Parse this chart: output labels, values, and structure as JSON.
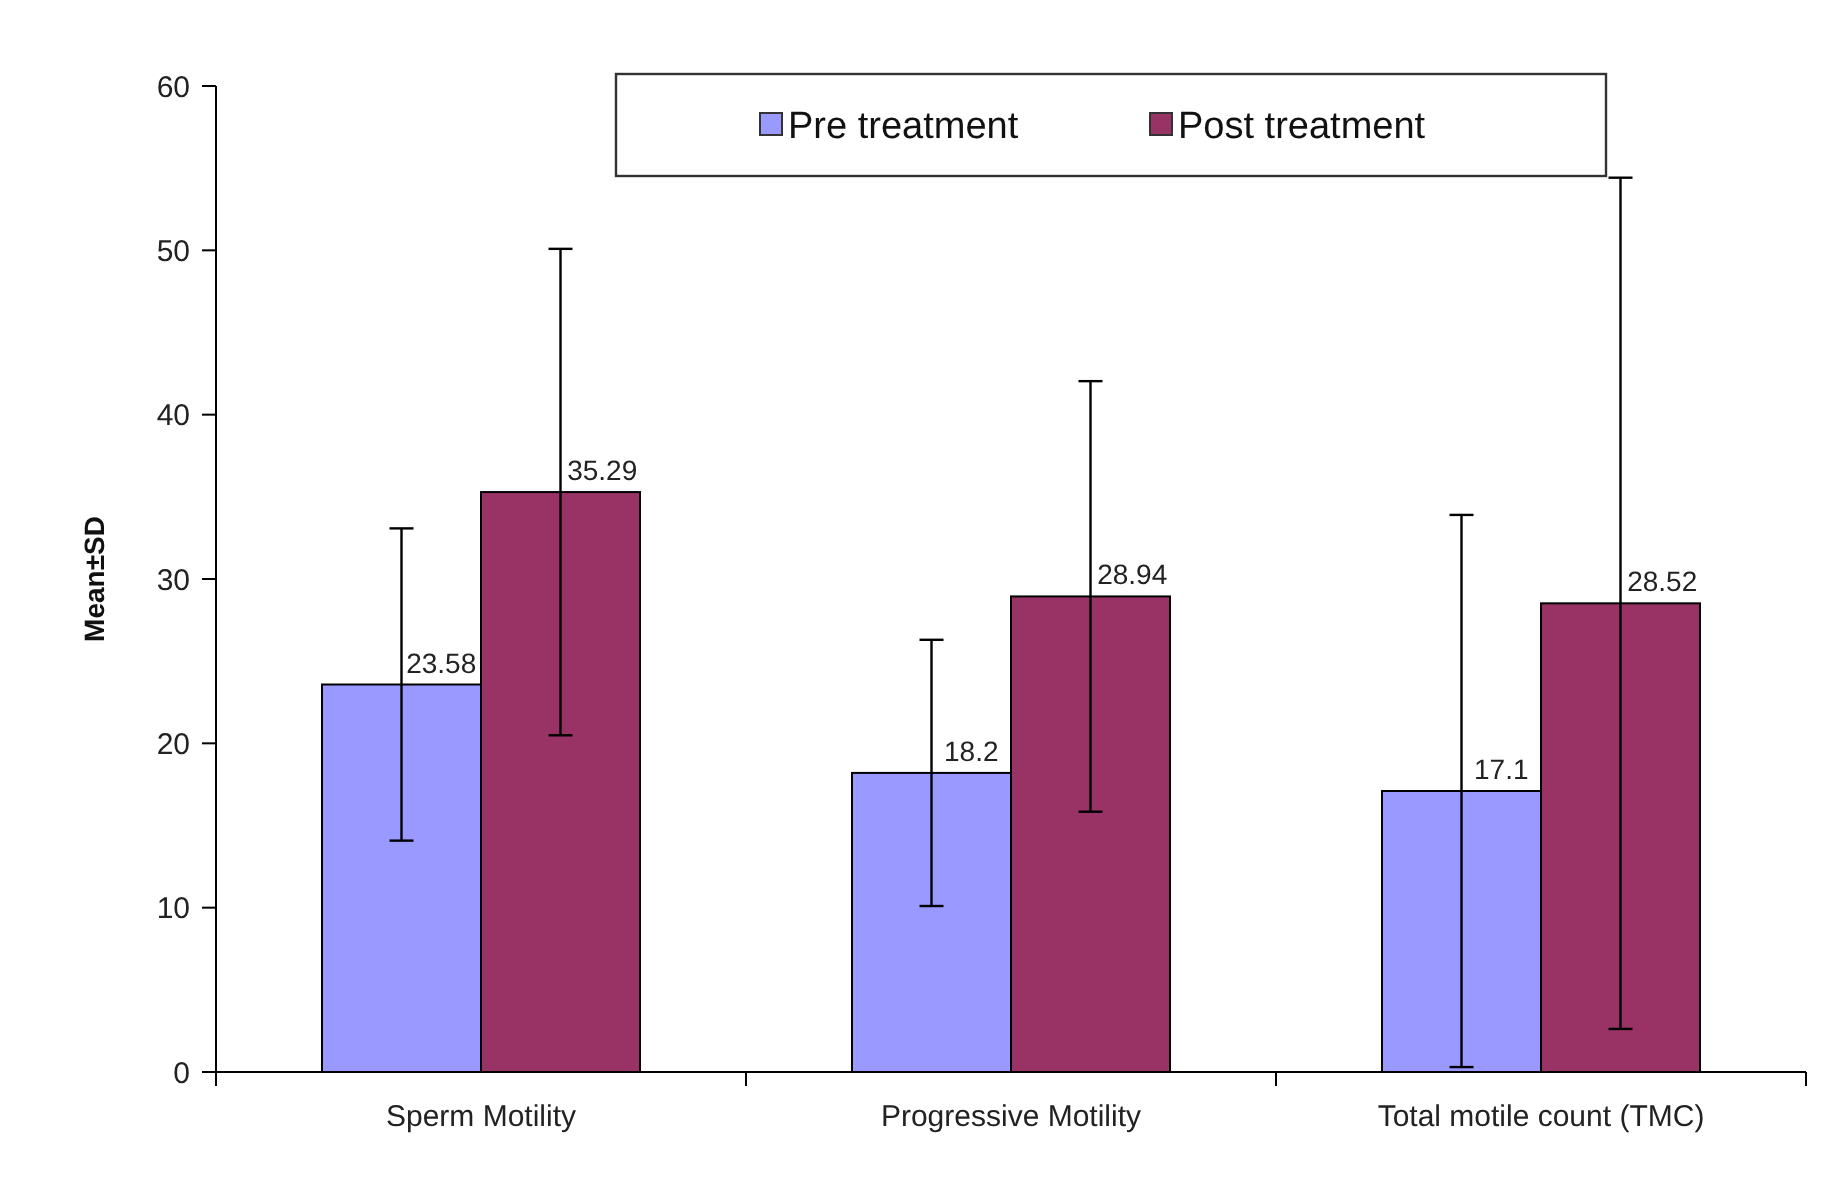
{
  "chart_data": {
    "type": "bar",
    "ylabel": "Mean±SD",
    "categories": [
      "Sperm Motility",
      "Progressive Motility",
      "Total motile count (TMC)"
    ],
    "series": [
      {
        "name": "Pre treatment",
        "color": "#9999ff",
        "values": [
          23.58,
          18.2,
          17.1
        ],
        "errors": [
          9.5,
          8.1,
          16.8
        ]
      },
      {
        "name": "Post treatment",
        "color": "#993366",
        "values": [
          35.29,
          28.94,
          28.52
        ],
        "errors": [
          14.8,
          13.1,
          25.9
        ]
      }
    ],
    "ylim": [
      0,
      60
    ],
    "yticks": [
      0,
      10,
      20,
      30,
      40,
      50,
      60
    ],
    "data_labels": true,
    "legend": "top",
    "grid": false
  }
}
